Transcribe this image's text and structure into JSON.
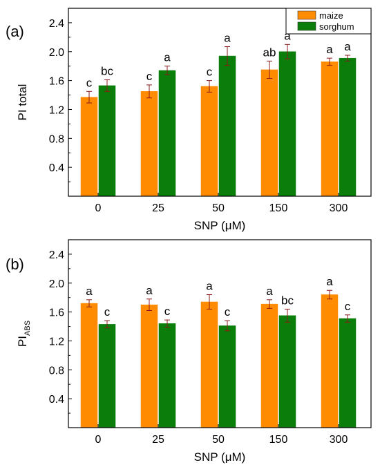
{
  "colors": {
    "maize": "#ff8c00",
    "sorghum": "#0a7d0a",
    "error_bar": "#8b1a1a",
    "axis": "#000000"
  },
  "chart_data": [
    {
      "type": "bar",
      "panel_label": "(a)",
      "xlabel": "SNP (μM)",
      "ylabel": "PI total",
      "ylabel_sub": "",
      "ylim": [
        0,
        2.6
      ],
      "yticks": [
        "0.4",
        "0.8",
        "1.2",
        "1.6",
        "2.0",
        "2.4"
      ],
      "categories": [
        "0",
        "25",
        "50",
        "150",
        "300"
      ],
      "legend": {
        "position": "top-right",
        "show": true
      },
      "grid": false,
      "series": [
        {
          "name": "maize",
          "values": [
            1.37,
            1.45,
            1.52,
            1.75,
            1.86
          ],
          "errors": [
            0.08,
            0.09,
            0.08,
            0.12,
            0.05
          ],
          "letters": [
            "c",
            "c",
            "c",
            "ab",
            "a"
          ]
        },
        {
          "name": "sorghum",
          "values": [
            1.53,
            1.74,
            1.94,
            2.0,
            1.91
          ],
          "errors": [
            0.08,
            0.06,
            0.13,
            0.1,
            0.04
          ],
          "letters": [
            "bc",
            "a",
            "a",
            "a",
            "a"
          ]
        }
      ]
    },
    {
      "type": "bar",
      "panel_label": "(b)",
      "xlabel": "SNP (μM)",
      "ylabel": "PI",
      "ylabel_sub": "ABS",
      "ylim": [
        0,
        2.6
      ],
      "yticks": [
        "0.4",
        "0.8",
        "1.2",
        "1.6",
        "2.0",
        "2.4"
      ],
      "categories": [
        "0",
        "25",
        "50",
        "150",
        "300"
      ],
      "legend": {
        "position": "none",
        "show": false
      },
      "grid": false,
      "series": [
        {
          "name": "maize",
          "values": [
            1.72,
            1.7,
            1.74,
            1.71,
            1.84
          ],
          "errors": [
            0.05,
            0.08,
            0.1,
            0.06,
            0.06
          ],
          "letters": [
            "a",
            "a",
            "a",
            "a",
            "a"
          ]
        },
        {
          "name": "sorghum",
          "values": [
            1.43,
            1.44,
            1.41,
            1.55,
            1.51
          ],
          "errors": [
            0.05,
            0.05,
            0.07,
            0.09,
            0.05
          ],
          "letters": [
            "c",
            "c",
            "c",
            "bc",
            "c"
          ]
        }
      ]
    }
  ]
}
